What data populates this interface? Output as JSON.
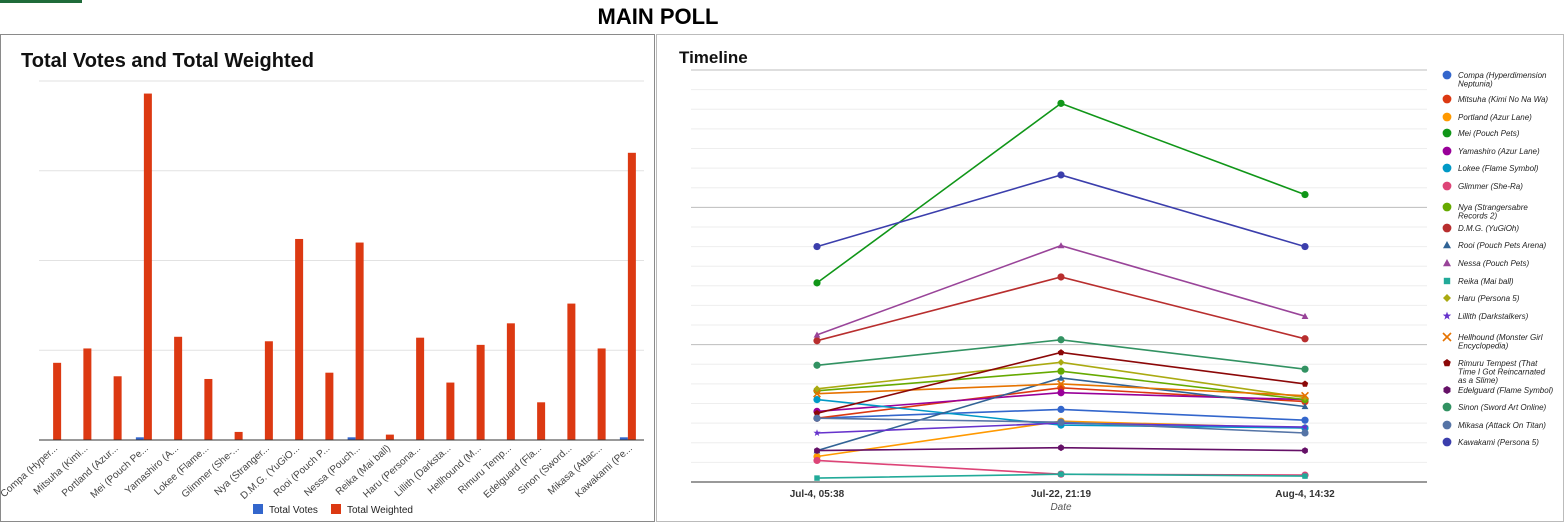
{
  "page": {
    "title": "MAIN POLL"
  },
  "chart_data": [
    {
      "type": "bar",
      "title": "Total Votes and Total Weighted",
      "categories": [
        "Compa (Hyper...",
        "Mitsuha (Kimi...",
        "Portland (Azur...",
        "Mei (Pouch Pe...",
        "Yamashiro (A...",
        "Lokee (Flame...",
        "Glimmer (She-...",
        "Nya (Stranger...",
        "D.M.G. (YuGiO...",
        "Rooi (Pouch P...",
        "Nessa (Pouch...",
        "Reika (Mai ball)",
        "Haru (Persona...",
        "Lillith (Darksta...",
        "Hellhound (M...",
        "Rimuru Temp...",
        "Edelguard (Fla...",
        "Sinon (Sword...",
        "Mikasa (Attac...",
        "Kawakami (Pe..."
      ],
      "series": [
        {
          "name": "Total Votes",
          "color": "#3366cc",
          "values": [
            0,
            0,
            0,
            0.3,
            0,
            0,
            0,
            0,
            0,
            0,
            0.3,
            0,
            0,
            0,
            0,
            0,
            0,
            0,
            0,
            0.3
          ]
        },
        {
          "name": "Total Weighted",
          "color": "#dc3912",
          "values": [
            8.6,
            10.2,
            7.1,
            38.6,
            11.5,
            6.8,
            0.9,
            11.0,
            22.4,
            7.5,
            22.0,
            0.6,
            11.4,
            6.4,
            10.6,
            13.0,
            4.2,
            15.2,
            10.2,
            32.0
          ]
        }
      ],
      "ylim": [
        0,
        40
      ],
      "grid": true,
      "legend": "bottom"
    },
    {
      "type": "line",
      "title": "Timeline",
      "xlabel": "Date",
      "x": [
        "Jul-4, 05:38",
        "Jul-22, 21:19",
        "Aug-4, 14:32"
      ],
      "ylim": [
        0,
        42
      ],
      "grid": true,
      "legend": "right",
      "series": [
        {
          "name": "Compa (Hyperdimension Neptunia)",
          "color": "#3366cc",
          "marker": "circle",
          "values": [
            6.5,
            7.4,
            6.3
          ]
        },
        {
          "name": "Mitsuha (Kimi No Na Wa)",
          "color": "#dc3912",
          "marker": "circle",
          "values": [
            6.5,
            9.6,
            8.2
          ]
        },
        {
          "name": "Portland (Azur Lane)",
          "color": "#ff9900",
          "marker": "circle",
          "values": [
            2.6,
            6.2,
            5.5
          ]
        },
        {
          "name": "Mei (Pouch Pets)",
          "color": "#109618",
          "marker": "circle",
          "values": [
            20.3,
            38.6,
            29.3
          ]
        },
        {
          "name": "Yamashiro (Azur Lane)",
          "color": "#990099",
          "marker": "circle",
          "values": [
            7.2,
            9.1,
            8.4
          ]
        },
        {
          "name": "Lokee (Flame Symbol)",
          "color": "#0099c6",
          "marker": "circle",
          "values": [
            8.4,
            5.8,
            5.5
          ]
        },
        {
          "name": "Glimmer (She-Ra)",
          "color": "#dd4477",
          "marker": "circle",
          "values": [
            2.2,
            0.8,
            0.7
          ]
        },
        {
          "name": "Nya (Strangersabre Records 2)",
          "color": "#66aa00",
          "marker": "circle",
          "values": [
            9.3,
            11.3,
            8.4
          ]
        },
        {
          "name": "D.M.G. (YuGiOh)",
          "color": "#b82e2e",
          "marker": "circle",
          "values": [
            14.4,
            20.9,
            14.6
          ]
        },
        {
          "name": "Rooi (Pouch Pets Arena)",
          "color": "#316395",
          "marker": "triangle",
          "values": [
            3.2,
            10.6,
            7.7
          ]
        },
        {
          "name": "Nessa (Pouch Pets)",
          "color": "#994499",
          "marker": "triangle",
          "values": [
            15.0,
            24.1,
            16.9
          ]
        },
        {
          "name": "Reika (Mai ball)",
          "color": "#22aa99",
          "marker": "square",
          "values": [
            0.4,
            0.8,
            0.6
          ]
        },
        {
          "name": "Haru (Persona 5)",
          "color": "#aaaa11",
          "marker": "diamond",
          "values": [
            9.5,
            12.2,
            8.6
          ]
        },
        {
          "name": "Lillith (Darkstalkers)",
          "color": "#6633cc",
          "marker": "star",
          "values": [
            5.0,
            6.0,
            5.6
          ]
        },
        {
          "name": "Hellhound (Monster Girl Encyclopedia)",
          "color": "#e67300",
          "marker": "x",
          "values": [
            9.0,
            10.0,
            8.8
          ]
        },
        {
          "name": "Rimuru Tempest (That Time I Got Reincarnated as a Slime)",
          "color": "#8b0707",
          "marker": "pentagon",
          "values": [
            7.0,
            13.2,
            10.0
          ]
        },
        {
          "name": "Edelguard (Flame Symbol)",
          "color": "#651067",
          "marker": "hexagon",
          "values": [
            3.2,
            3.5,
            3.2
          ]
        },
        {
          "name": "Sinon (Sword Art Online)",
          "color": "#329262",
          "marker": "circle",
          "values": [
            11.9,
            14.5,
            11.5
          ]
        },
        {
          "name": "Mikasa (Attack On Titan)",
          "color": "#5574a6",
          "marker": "circle",
          "values": [
            6.5,
            6.1,
            5.0
          ]
        },
        {
          "name": "Kawakami (Persona 5)",
          "color": "#3b3eac",
          "marker": "circle",
          "values": [
            24.0,
            31.3,
            24.0
          ]
        }
      ]
    }
  ]
}
